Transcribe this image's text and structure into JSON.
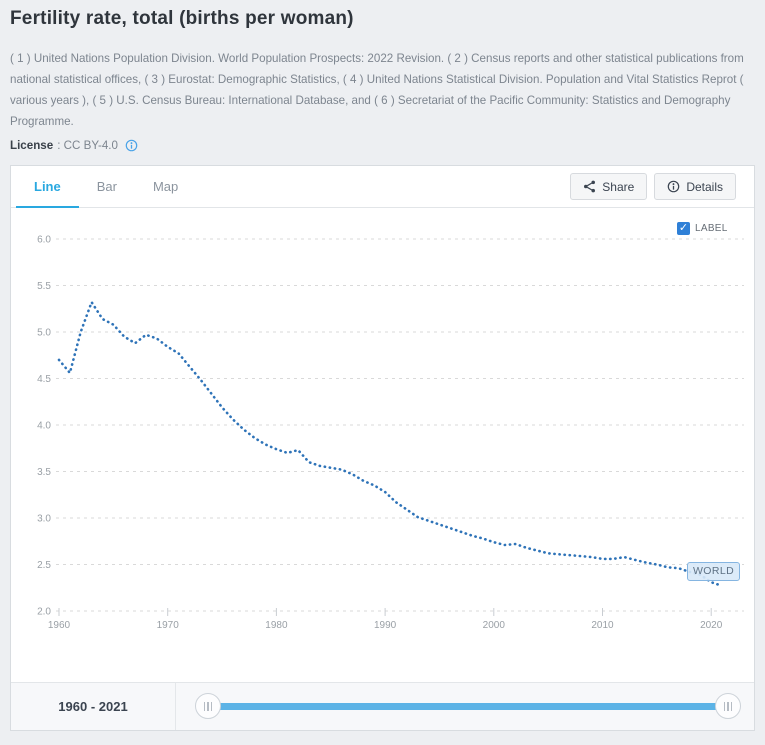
{
  "page": {
    "title": "Fertility rate, total (births per woman)",
    "source_text": "( 1 ) United Nations Population Division. World Population Prospects: 2022 Revision. ( 2 ) Census reports and other statistical publications from national statistical offices, ( 3 ) Eurostat: Demographic Statistics, ( 4 ) United Nations Statistical Division. Population and Vital Statistics Reprot ( various years ), ( 5 ) U.S. Census Bureau: International Database, and ( 6 ) Secretariat of the Pacific Community: Statistics and Demography Programme.",
    "license_label": "License",
    "license_value": ": CC BY-4.0"
  },
  "tabs": [
    {
      "label": "Line",
      "active": true
    },
    {
      "label": "Bar",
      "active": false
    },
    {
      "label": "Map",
      "active": false
    }
  ],
  "toolbar": {
    "share_label": "Share",
    "details_label": "Details"
  },
  "chart_controls": {
    "label_checkbox_text": "LABEL",
    "label_checkbox_checked": true,
    "checkmark": "✓"
  },
  "series_badge": "WORLD",
  "range_slider": {
    "label": "1960 - 2021",
    "min": 1960,
    "max": 2021
  },
  "colors": {
    "accent_tab_blue": "#29a8e0",
    "line_blue": "#2e73b8",
    "slider_track_blue": "#5cb3e6",
    "checkbox_blue": "#2f80d7",
    "axis_text_gray": "#9aa0a6",
    "grid_gray": "#d9d9d9"
  },
  "chart_data": {
    "type": "line",
    "title": "Fertility rate, total (births per woman)",
    "line_style": "dotted",
    "grid": "dashed-horizontal",
    "legend_position": "none",
    "xlabel": "",
    "ylabel": "",
    "xlim": [
      1960,
      2021
    ],
    "ylim": [
      2.0,
      6.0
    ],
    "x_ticks": [
      1960,
      1970,
      1980,
      1990,
      2000,
      2010,
      2020
    ],
    "y_ticks": [
      2.0,
      2.5,
      3.0,
      3.5,
      4.0,
      4.5,
      5.0,
      5.5,
      6.0
    ],
    "series": [
      {
        "name": "WORLD",
        "color": "#2e73b8",
        "x": [
          1960,
          1961,
          1962,
          1963,
          1964,
          1965,
          1966,
          1967,
          1968,
          1969,
          1970,
          1971,
          1972,
          1973,
          1974,
          1975,
          1976,
          1977,
          1978,
          1979,
          1980,
          1981,
          1982,
          1983,
          1984,
          1985,
          1986,
          1987,
          1988,
          1989,
          1990,
          1991,
          1992,
          1993,
          1994,
          1995,
          1996,
          1997,
          1998,
          1999,
          2000,
          2001,
          2002,
          2003,
          2004,
          2005,
          2006,
          2007,
          2008,
          2009,
          2010,
          2011,
          2012,
          2013,
          2014,
          2015,
          2016,
          2017,
          2018,
          2019,
          2020,
          2021
        ],
        "values": [
          4.7,
          4.56,
          5.0,
          5.32,
          5.14,
          5.08,
          4.95,
          4.88,
          4.97,
          4.93,
          4.84,
          4.77,
          4.63,
          4.49,
          4.34,
          4.19,
          4.06,
          3.95,
          3.86,
          3.79,
          3.74,
          3.7,
          3.73,
          3.6,
          3.56,
          3.54,
          3.52,
          3.47,
          3.4,
          3.35,
          3.28,
          3.17,
          3.09,
          3.01,
          2.97,
          2.93,
          2.89,
          2.85,
          2.81,
          2.78,
          2.74,
          2.71,
          2.72,
          2.68,
          2.65,
          2.62,
          2.61,
          2.6,
          2.59,
          2.58,
          2.56,
          2.56,
          2.58,
          2.55,
          2.52,
          2.5,
          2.47,
          2.46,
          2.42,
          2.39,
          2.31,
          2.27
        ]
      }
    ]
  }
}
